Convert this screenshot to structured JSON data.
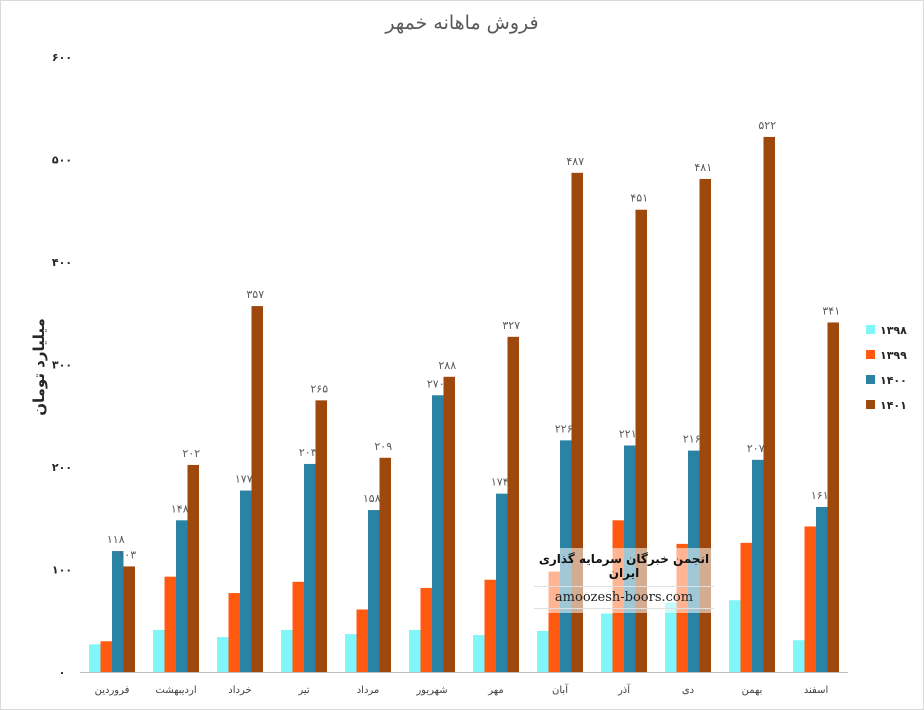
{
  "chart_data": {
    "type": "bar",
    "title": "فروش ماهانه خمهر",
    "ylabel": "میلیارد تومان",
    "xlabel": "",
    "ylim": [
      0,
      600
    ],
    "yticks": [
      0,
      100,
      200,
      300,
      400,
      500,
      600
    ],
    "ytick_labels": [
      "۰",
      "۱۰۰",
      "۲۰۰",
      "۳۰۰",
      "۴۰۰",
      "۵۰۰",
      "۶۰۰"
    ],
    "grid": false,
    "legend_position": "right",
    "categories": [
      "فروردین",
      "اردیبهشت",
      "خرداد",
      "تیر",
      "مرداد",
      "شهریور",
      "مهر",
      "آبان",
      "آذر",
      "دی",
      "بهمن",
      "اسفند"
    ],
    "series": [
      {
        "name": "۱۳۹۸",
        "color": "#7ff6f7",
        "values": [
          27,
          41,
          34,
          41,
          37,
          41,
          36,
          40,
          57,
          68,
          70,
          31
        ],
        "labels": []
      },
      {
        "name": "۱۳۹۹",
        "color": "#ff5a10",
        "values": [
          30,
          93,
          77,
          88,
          61,
          82,
          90,
          98,
          148,
          125,
          126,
          142
        ],
        "labels": []
      },
      {
        "name": "۱۴۰۰",
        "color": "#2a83a2",
        "values": [
          118,
          148,
          177,
          203,
          158,
          270,
          174,
          226,
          221,
          216,
          207,
          161
        ],
        "labels": [
          "۱۱۸",
          "۱۴۸",
          "۱۷۷",
          "۲۰۳",
          "۱۵۸",
          "۲۷۰",
          "۱۷۴",
          "۲۲۶",
          "۲۲۱",
          "۲۱۶",
          "۲۰۷",
          "۱۶۱"
        ]
      },
      {
        "name": "۱۴۰۱",
        "color": "#9e480e",
        "values": [
          103,
          202,
          357,
          265,
          209,
          288,
          327,
          487,
          451,
          481,
          522,
          341
        ],
        "labels": [
          "۱۰۳",
          "۲۰۲",
          "۳۵۷",
          "۲۶۵",
          "۲۰۹",
          "۲۸۸",
          "۳۲۷",
          "۴۸۷",
          "۴۵۱",
          "۴۸۱",
          "۵۲۲",
          "۳۴۱"
        ]
      }
    ]
  },
  "watermark": {
    "line1": "انجمن خبرگان سرمایه گذاری ایران",
    "line2": "amoozesh-boors.com"
  }
}
